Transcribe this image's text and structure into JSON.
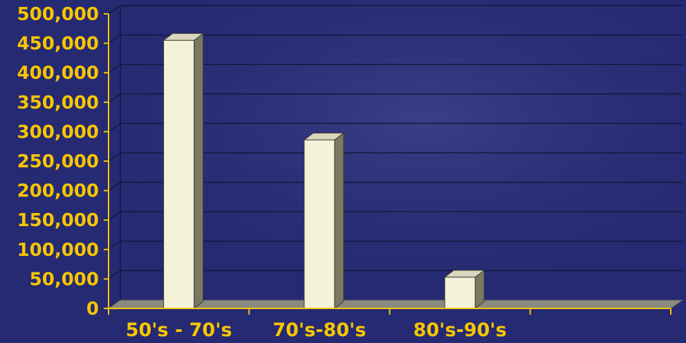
{
  "chart_data": {
    "type": "bar",
    "categories": [
      "50's - 70's",
      "70's-80's",
      "80's-90's",
      ""
    ],
    "values": [
      455000,
      286000,
      53000,
      null
    ],
    "ylim": [
      0,
      500000
    ],
    "yticks": [
      0,
      50000,
      100000,
      150000,
      200000,
      250000,
      300000,
      350000,
      400000,
      450000,
      500000
    ],
    "ytick_labels": [
      "0",
      "50,000",
      "100,000",
      "150,000",
      "200,000",
      "250,000",
      "300,000",
      "350,000",
      "400,000",
      "450,000",
      "500,000"
    ],
    "grid": true,
    "three_d": true
  },
  "colors": {
    "background": "#262a72",
    "bar_front": "#f5f2da",
    "bar_side": "#7a7a62",
    "bar_top": "#d9d6bd",
    "floor": "#8a8a80",
    "grid": "#15173f",
    "axis": "#f7c600",
    "label": "#f7c600"
  }
}
